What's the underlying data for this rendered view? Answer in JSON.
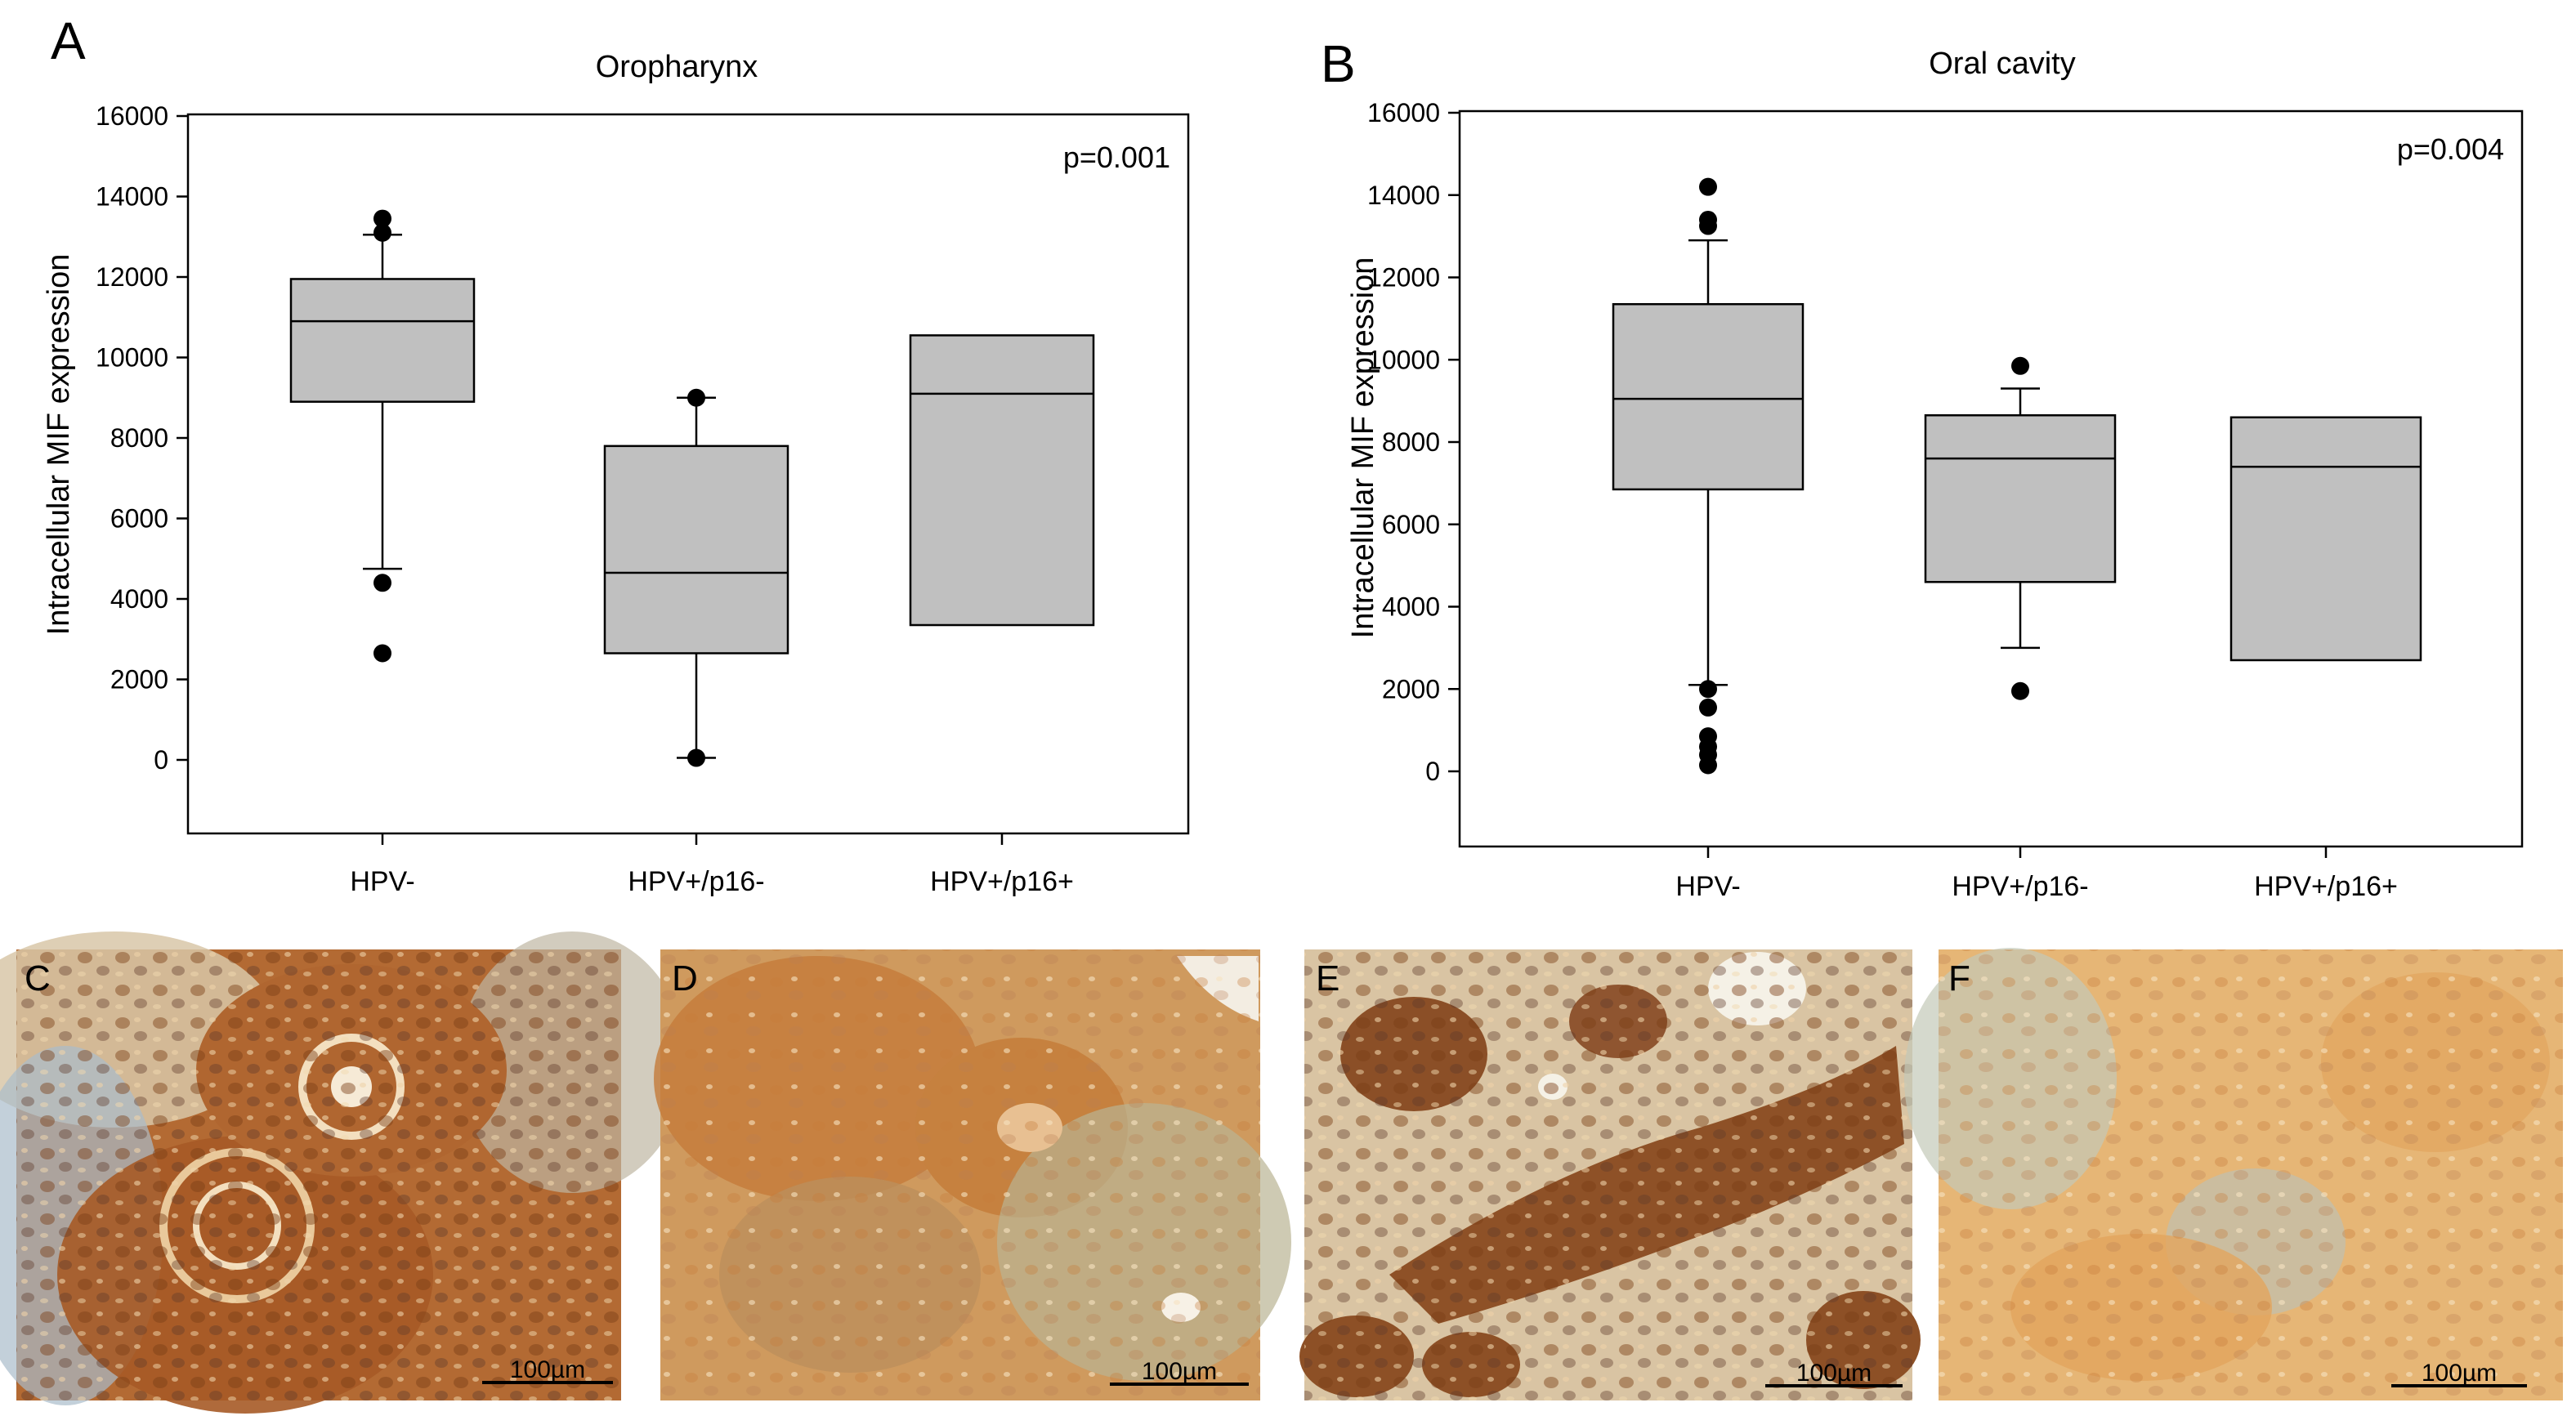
{
  "panel_letters": {
    "a": "A",
    "b": "B",
    "c": "C",
    "d": "D",
    "e": "E",
    "f": "F"
  },
  "scale_bar_label": "100µm",
  "colors": {
    "box_fill": "#c0c0c0",
    "stroke": "#000000",
    "outlier": "#000000",
    "stain_brown": "#b5692e",
    "stain_blue": "#9fb8c9"
  },
  "micrographs": [
    {
      "letter": "C",
      "description_icon": "tissue-micrograph-icon"
    },
    {
      "letter": "D",
      "description_icon": "tissue-micrograph-icon"
    },
    {
      "letter": "E",
      "description_icon": "tissue-micrograph-icon"
    },
    {
      "letter": "F",
      "description_icon": "tissue-micrograph-icon"
    }
  ],
  "chart_data": [
    {
      "type": "box",
      "title": "Oropharynx",
      "ylabel": "Intracellular MIF expression",
      "xlabel": "",
      "annotation": "p=0.001",
      "ylim": [
        -1800,
        16000
      ],
      "yticks": [
        0,
        2000,
        4000,
        6000,
        8000,
        10000,
        12000,
        14000,
        16000
      ],
      "categories": [
        "HPV-",
        "HPV+/p16-",
        "HPV+/p16+"
      ],
      "boxes": [
        {
          "category": "HPV-",
          "q1": 8900,
          "median": 10900,
          "q3": 11950,
          "whisker_low": 4750,
          "whisker_high": 13050,
          "outliers": [
            13450,
            13100,
            4400,
            2650
          ]
        },
        {
          "category": "HPV+/p16-",
          "q1": 2650,
          "median": 4650,
          "q3": 7800,
          "whisker_low": 50,
          "whisker_high": 9000,
          "outliers": [
            9000,
            50
          ]
        },
        {
          "category": "HPV+/p16+",
          "q1": 3350,
          "median": 9100,
          "q3": 10550,
          "whisker_low": null,
          "whisker_high": null,
          "outliers": []
        }
      ]
    },
    {
      "type": "box",
      "title": "Oral cavity",
      "ylabel": "Intracellular MIF expression",
      "xlabel": "",
      "annotation": "p=0.004",
      "ylim": [
        -1800,
        16000
      ],
      "yticks": [
        0,
        2000,
        4000,
        6000,
        8000,
        10000,
        12000,
        14000,
        16000
      ],
      "categories": [
        "HPV-",
        "HPV+/p16-",
        "HPV+/p16+"
      ],
      "boxes": [
        {
          "category": "HPV-",
          "q1": 6850,
          "median": 9050,
          "q3": 11350,
          "whisker_low": 2100,
          "whisker_high": 12900,
          "outliers": [
            14200,
            13400,
            13250,
            2000,
            1550,
            850,
            600,
            400,
            150
          ]
        },
        {
          "category": "HPV+/p16-",
          "q1": 4600,
          "median": 7600,
          "q3": 8650,
          "whisker_low": 3000,
          "whisker_high": 9300,
          "outliers": [
            9850,
            1950
          ]
        },
        {
          "category": "HPV+/p16+",
          "q1": 2700,
          "median": 7400,
          "q3": 8600,
          "whisker_low": null,
          "whisker_high": null,
          "outliers": []
        }
      ]
    }
  ]
}
